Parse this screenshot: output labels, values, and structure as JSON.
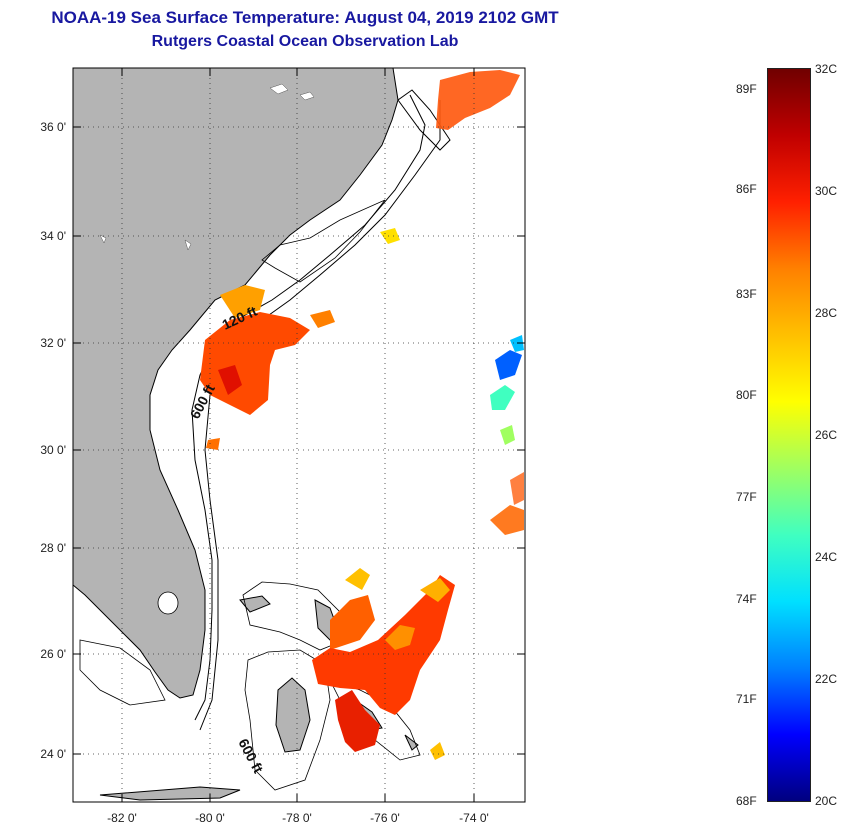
{
  "title": {
    "line1": "NOAA-19 Sea Surface Temperature:  August 04, 2019 2102 GMT",
    "line2": "Rutgers Coastal Ocean Observation Lab"
  },
  "map": {
    "lat_labels": [
      "36 0'",
      "34 0'",
      "32 0'",
      "30 0'",
      "28 0'",
      "26 0'",
      "24 0'"
    ],
    "lon_labels": [
      "-82 0'",
      "-80 0'",
      "-78 0'",
      "-76 0'",
      "-74 0'"
    ],
    "contour_labels": [
      "120 ft",
      "600 ft",
      "600 ft"
    ],
    "land_color": "#b4b4b4",
    "graticule": "dotted"
  },
  "colorbar": {
    "f_labels": [
      "89F",
      "86F",
      "83F",
      "80F",
      "77F",
      "74F",
      "71F",
      "68F"
    ],
    "c_labels": [
      "32C",
      "30C",
      "28C",
      "26C",
      "24C",
      "22C",
      "20C"
    ],
    "colors": [
      "#00007f",
      "#0000ff",
      "#0080ff",
      "#00e0ff",
      "#40ffc0",
      "#a0ff60",
      "#ffff00",
      "#ffc000",
      "#ff8000",
      "#ff2000",
      "#c00000",
      "#700000"
    ]
  }
}
